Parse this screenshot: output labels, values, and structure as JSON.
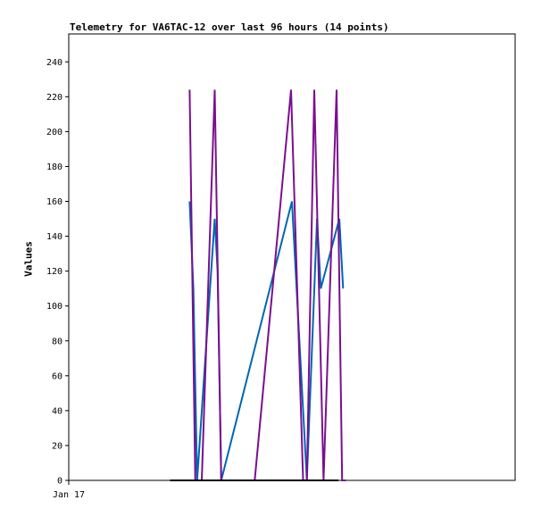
{
  "chart_data": {
    "type": "line",
    "title": "Telemetry for VA6TAC-12 over last 96 hours (14 points)",
    "xlabel": "",
    "ylabel": "Values",
    "x_tick_labels": [
      "Jan 17"
    ],
    "y_ticks": [
      0,
      20,
      40,
      60,
      80,
      100,
      120,
      140,
      160,
      180,
      200,
      220,
      240
    ],
    "ylim": [
      0,
      256
    ],
    "xlim": [
      0,
      96
    ],
    "grid": false,
    "legend": "none",
    "series": [
      {
        "color": "#0066b3",
        "points": [
          [
            26.0,
            160
          ],
          [
            26.8,
            110
          ],
          [
            27.6,
            0
          ],
          [
            31.4,
            150
          ],
          [
            32.0,
            120
          ],
          [
            32.8,
            0
          ],
          [
            48.0,
            160
          ],
          [
            51.2,
            0
          ],
          [
            53.4,
            150
          ],
          [
            54.2,
            110
          ],
          [
            58.2,
            150
          ],
          [
            59.0,
            110
          ]
        ]
      },
      {
        "color": "#7b0f8f",
        "points": [
          [
            26.0,
            224
          ],
          [
            27.2,
            0
          ],
          [
            28.6,
            0
          ],
          [
            31.4,
            224
          ],
          [
            32.8,
            0
          ],
          [
            35.0,
            0
          ],
          [
            40.0,
            0
          ],
          [
            47.8,
            224
          ],
          [
            50.4,
            0
          ],
          [
            51.2,
            0
          ],
          [
            52.8,
            224
          ],
          [
            54.8,
            0
          ],
          [
            57.6,
            224
          ],
          [
            58.8,
            0
          ],
          [
            59.6,
            0
          ]
        ]
      },
      {
        "color": "#000000",
        "points": [
          [
            21.8,
            0
          ],
          [
            58.0,
            0
          ]
        ]
      }
    ]
  }
}
